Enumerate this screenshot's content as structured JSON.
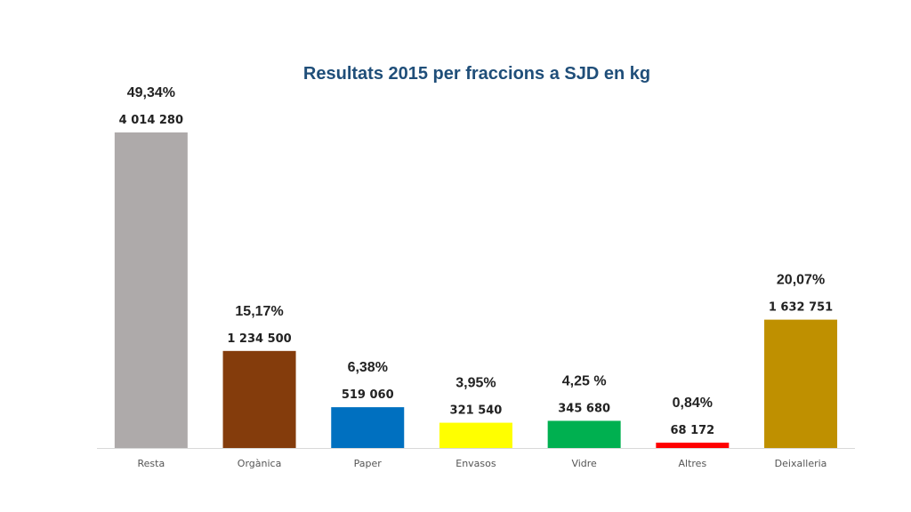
{
  "chart_data": {
    "type": "bar",
    "title": "Resultats 2015 per fraccions a SJD en kg",
    "xlabel": "",
    "ylabel": "",
    "ylim": [
      0,
      4014280
    ],
    "grid": false,
    "legend": "none",
    "categories": [
      "Resta",
      "Orgànica",
      "Paper",
      "Envasos",
      "Vidre",
      "Altres",
      "Deixalleria"
    ],
    "values": [
      4014280,
      1234500,
      519060,
      321540,
      345680,
      68172,
      1632751
    ],
    "value_labels": [
      "4 014 280",
      "1 234 500",
      "519 060",
      "321 540",
      "345 680",
      "68 172",
      "1 632 751"
    ],
    "percent_labels": [
      "49,34%",
      "15,17%",
      "6,38%",
      "3,95%",
      "4,25 %",
      "0,84%",
      "20,07%"
    ],
    "colors": [
      "#aeaaaa",
      "#843c0c",
      "#0070c0",
      "#ffff00",
      "#00b050",
      "#ff0000",
      "#bf9000"
    ]
  }
}
